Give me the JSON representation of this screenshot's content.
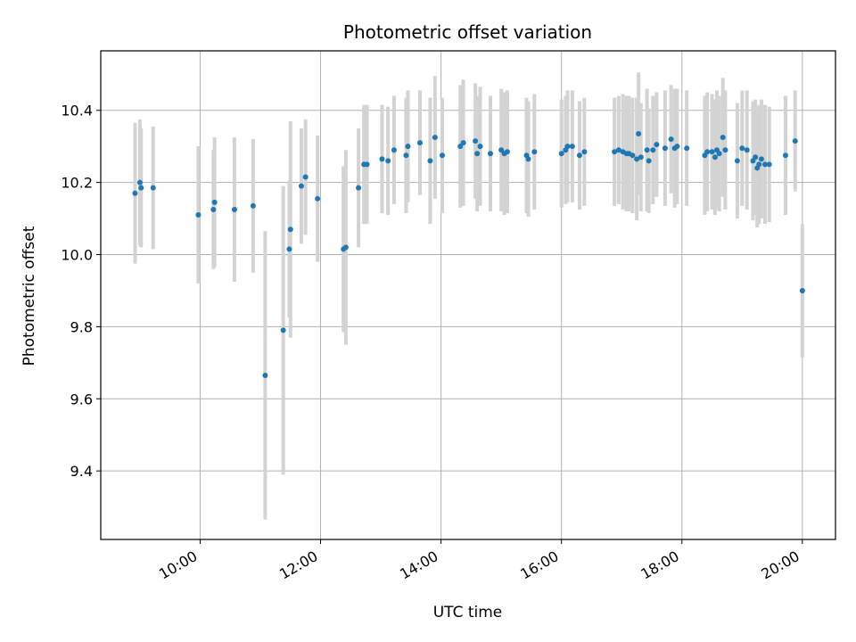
{
  "chart_data": {
    "type": "scatter",
    "title": "Photometric offset variation",
    "xlabel": "UTC time",
    "ylabel": "Photometric offset",
    "x_unit": "hours (UTC)",
    "xlim": [
      8.35,
      20.55
    ],
    "ylim": [
      9.21,
      10.565
    ],
    "x_ticks": [
      10,
      12,
      14,
      16,
      18,
      20
    ],
    "x_tick_labels": [
      "10:00",
      "12:00",
      "14:00",
      "16:00",
      "18:00",
      "20:00"
    ],
    "y_ticks": [
      9.4,
      9.6,
      9.8,
      10.0,
      10.2,
      10.4
    ],
    "y_tick_labels": [
      "9.4",
      "9.6",
      "9.8",
      "10.0",
      "10.2",
      "10.4"
    ],
    "grid": true,
    "legend": "none",
    "colors": {
      "points": "#1f77b4",
      "errorbars": "#d3d3d3",
      "grid": "#b0b0b0"
    },
    "series": [
      {
        "points": [
          [
            8.92,
            10.17,
            0.195
          ],
          [
            9.0,
            10.2,
            0.175
          ],
          [
            9.02,
            10.185,
            0.165
          ],
          [
            9.22,
            10.185,
            0.17
          ],
          [
            9.97,
            10.11,
            0.19
          ],
          [
            10.22,
            10.125,
            0.165
          ],
          [
            10.24,
            10.145,
            0.18
          ],
          [
            10.57,
            10.125,
            0.2
          ],
          [
            10.88,
            10.135,
            0.185
          ],
          [
            11.08,
            9.665,
            0.4
          ],
          [
            11.38,
            9.79,
            0.4
          ],
          [
            11.48,
            10.015,
            0.19
          ],
          [
            11.5,
            10.07,
            0.3
          ],
          [
            11.68,
            10.19,
            0.16
          ],
          [
            11.75,
            10.215,
            0.16
          ],
          [
            11.95,
            10.155,
            0.175
          ],
          [
            12.38,
            10.015,
            0.23
          ],
          [
            12.42,
            10.02,
            0.27
          ],
          [
            12.63,
            10.185,
            0.165
          ],
          [
            12.72,
            10.25,
            0.165
          ],
          [
            12.77,
            10.25,
            0.165
          ],
          [
            13.02,
            10.265,
            0.15
          ],
          [
            13.12,
            10.26,
            0.15
          ],
          [
            13.22,
            10.29,
            0.15
          ],
          [
            13.42,
            10.275,
            0.16
          ],
          [
            13.45,
            10.3,
            0.155
          ],
          [
            13.65,
            10.31,
            0.145
          ],
          [
            13.82,
            10.26,
            0.175
          ],
          [
            13.9,
            10.325,
            0.17
          ],
          [
            14.02,
            10.275,
            0.16
          ],
          [
            14.32,
            10.3,
            0.17
          ],
          [
            14.37,
            10.31,
            0.175
          ],
          [
            14.57,
            10.315,
            0.16
          ],
          [
            14.6,
            10.28,
            0.16
          ],
          [
            14.65,
            10.3,
            0.165
          ],
          [
            14.82,
            10.28,
            0.16
          ],
          [
            15.0,
            10.29,
            0.17
          ],
          [
            15.05,
            10.28,
            0.17
          ],
          [
            15.1,
            10.285,
            0.17
          ],
          [
            15.42,
            10.275,
            0.16
          ],
          [
            15.45,
            10.265,
            0.16
          ],
          [
            15.55,
            10.285,
            0.16
          ],
          [
            16.0,
            10.28,
            0.15
          ],
          [
            16.07,
            10.29,
            0.15
          ],
          [
            16.1,
            10.3,
            0.155
          ],
          [
            16.18,
            10.3,
            0.155
          ],
          [
            16.3,
            10.275,
            0.15
          ],
          [
            16.38,
            10.285,
            0.15
          ],
          [
            16.88,
            10.285,
            0.15
          ],
          [
            16.95,
            10.29,
            0.15
          ],
          [
            17.02,
            10.285,
            0.16
          ],
          [
            17.08,
            10.28,
            0.16
          ],
          [
            17.12,
            10.28,
            0.16
          ],
          [
            17.18,
            10.275,
            0.16
          ],
          [
            17.25,
            10.265,
            0.17
          ],
          [
            17.28,
            10.335,
            0.17
          ],
          [
            17.32,
            10.27,
            0.15
          ],
          [
            17.42,
            10.29,
            0.17
          ],
          [
            17.45,
            10.26,
            0.145
          ],
          [
            17.52,
            10.29,
            0.15
          ],
          [
            17.58,
            10.305,
            0.145
          ],
          [
            17.72,
            10.295,
            0.16
          ],
          [
            17.82,
            10.32,
            0.15
          ],
          [
            17.88,
            10.295,
            0.165
          ],
          [
            17.92,
            10.3,
            0.16
          ],
          [
            18.08,
            10.295,
            0.16
          ],
          [
            18.38,
            10.275,
            0.165
          ],
          [
            18.42,
            10.285,
            0.165
          ],
          [
            18.5,
            10.285,
            0.16
          ],
          [
            18.55,
            10.27,
            0.16
          ],
          [
            18.58,
            10.29,
            0.165
          ],
          [
            18.62,
            10.28,
            0.16
          ],
          [
            18.68,
            10.325,
            0.165
          ],
          [
            18.72,
            10.29,
            0.165
          ],
          [
            18.92,
            10.26,
            0.16
          ],
          [
            19.0,
            10.295,
            0.16
          ],
          [
            19.08,
            10.29,
            0.165
          ],
          [
            19.18,
            10.26,
            0.165
          ],
          [
            19.22,
            10.27,
            0.16
          ],
          [
            19.25,
            10.24,
            0.165
          ],
          [
            19.28,
            10.25,
            0.165
          ],
          [
            19.32,
            10.265,
            0.165
          ],
          [
            19.38,
            10.25,
            0.165
          ],
          [
            19.45,
            10.25,
            0.16
          ],
          [
            19.72,
            10.275,
            0.165
          ],
          [
            19.88,
            10.315,
            0.14
          ],
          [
            20.0,
            9.9,
            0.185
          ]
        ]
      }
    ]
  }
}
